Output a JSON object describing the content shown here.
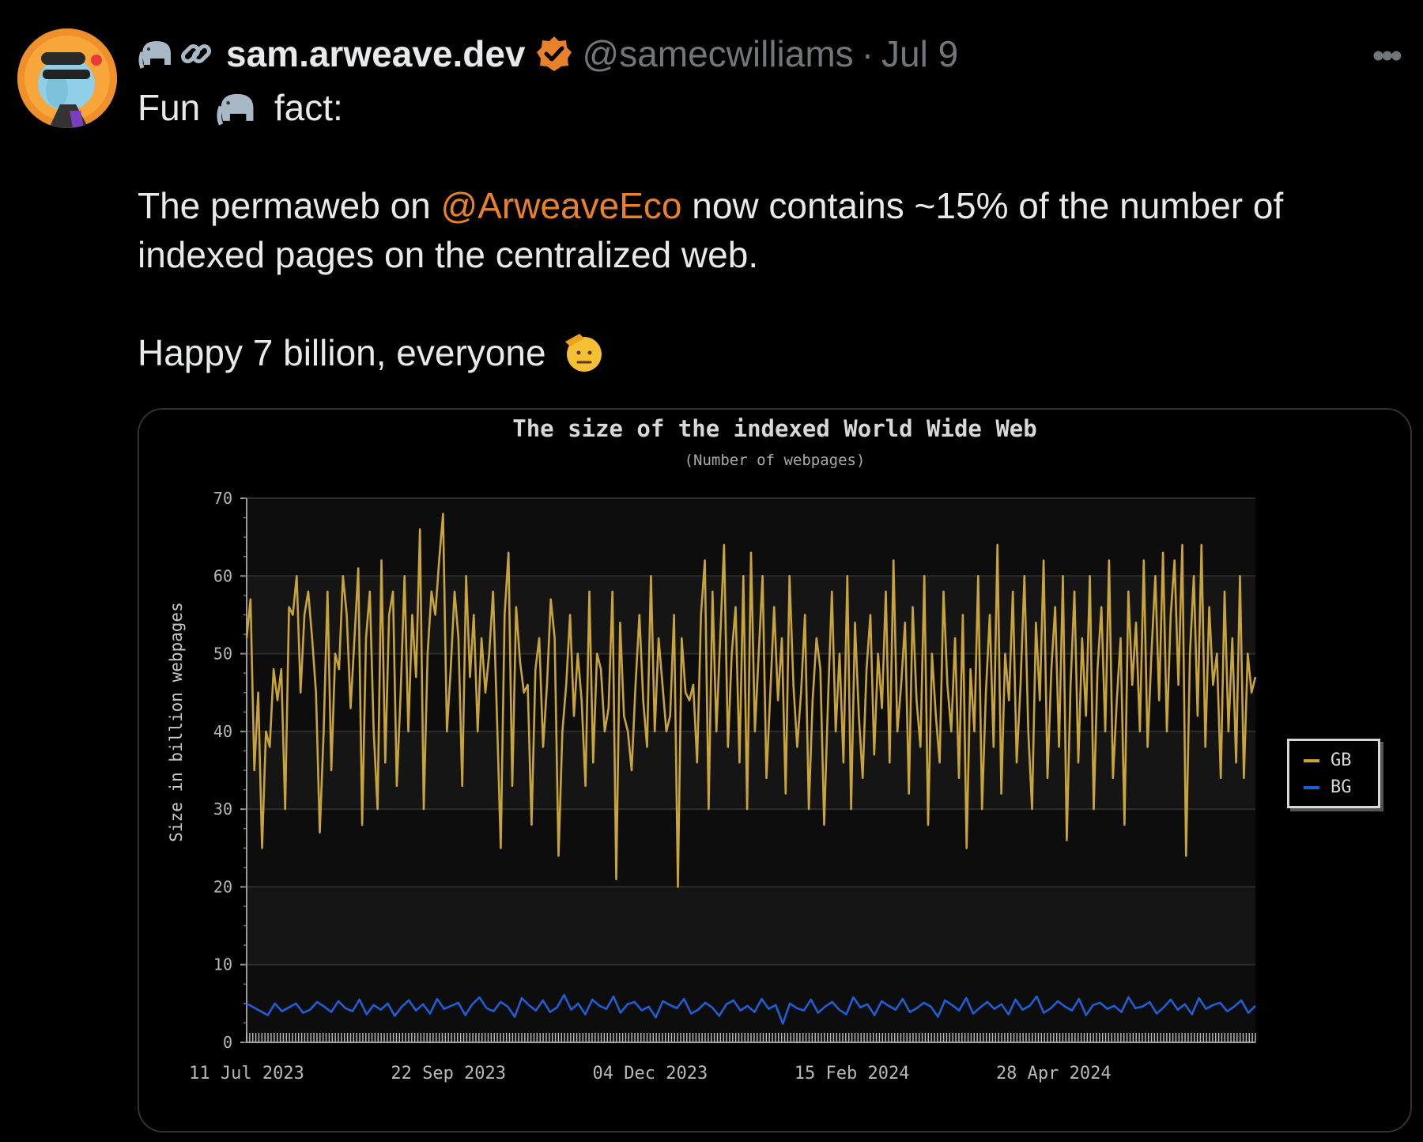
{
  "tweet": {
    "author_emojis": [
      "elephant",
      "link"
    ],
    "display_name": "sam.arweave.dev",
    "handle": "@samecwilliams",
    "separator": "·",
    "date": "Jul 9",
    "more_label": "•••",
    "line1_a": "Fun",
    "line1_b": "fact:",
    "line2_a": "The permaweb on",
    "mention": "@ArweaveEco",
    "line2_b": "now contains ~15% of the number of indexed pages on the centralized web.",
    "line3": "Happy 7 billion, everyone"
  },
  "colors": {
    "background": "#000000",
    "text": "#e7e9ea",
    "muted": "#71767b",
    "mention": "#e8812a",
    "verified_badge": "#e8812a",
    "gb_series": "#c9a43a",
    "bg_series": "#1e5fd6"
  },
  "chart_data": {
    "type": "line",
    "title": "The size of the indexed World Wide Web",
    "subtitle": "(Number of webpages)",
    "ylabel": "Size in billion webpages",
    "ylim": [
      0,
      70
    ],
    "yticks": [
      0,
      10,
      20,
      30,
      40,
      50,
      60,
      70
    ],
    "xtick_labels": [
      "11 Jul 2023",
      "22 Sep 2023",
      "04 Dec 2023",
      "15 Feb 2024",
      "28 Apr 2024"
    ],
    "legend_position": "right",
    "series": [
      {
        "name": "GB",
        "color": "#c9a43a",
        "values": [
          52,
          57,
          35,
          45,
          25,
          40,
          38,
          48,
          44,
          48,
          30,
          56,
          55,
          60,
          45,
          55,
          58,
          52,
          45,
          27,
          40,
          58,
          35,
          50,
          48,
          60,
          55,
          43,
          52,
          61,
          28,
          52,
          58,
          40,
          30,
          62,
          36,
          55,
          58,
          33,
          45,
          60,
          40,
          55,
          47,
          66,
          30,
          50,
          58,
          55,
          62,
          68,
          40,
          48,
          58,
          52,
          33,
          60,
          47,
          55,
          40,
          52,
          45,
          50,
          58,
          42,
          25,
          55,
          63,
          33,
          56,
          49,
          45,
          46,
          28,
          48,
          52,
          38,
          46,
          57,
          52,
          24,
          40,
          46,
          55,
          42,
          50,
          44,
          33,
          58,
          36,
          50,
          48,
          40,
          43,
          58,
          21,
          54,
          42,
          40,
          35,
          46,
          55,
          44,
          38,
          60,
          40,
          52,
          46,
          40,
          42,
          55,
          20,
          52,
          45,
          44,
          46,
          36,
          55,
          62,
          30,
          58,
          40,
          52,
          64,
          38,
          50,
          56,
          36,
          60,
          30,
          63,
          40,
          50,
          60,
          34,
          45,
          56,
          44,
          52,
          32,
          60,
          46,
          38,
          45,
          55,
          30,
          44,
          52,
          48,
          28,
          44,
          58,
          40,
          50,
          36,
          60,
          30,
          54,
          42,
          34,
          48,
          55,
          37,
          50,
          43,
          58,
          36,
          62,
          40,
          46,
          54,
          32,
          56,
          44,
          38,
          60,
          28,
          50,
          42,
          36,
          58,
          46,
          40,
          52,
          34,
          55,
          25,
          48,
          40,
          60,
          30,
          45,
          55,
          38,
          64,
          32,
          50,
          44,
          58,
          36,
          46,
          60,
          40,
          30,
          54,
          44,
          62,
          34,
          48,
          56,
          38,
          60,
          26,
          46,
          58,
          36,
          52,
          42,
          60,
          30,
          48,
          56,
          40,
          62,
          34,
          44,
          52,
          28,
          58,
          46,
          54,
          40,
          62,
          38,
          50,
          60,
          44,
          63,
          40,
          55,
          62,
          46,
          64,
          24,
          50,
          60,
          42,
          64,
          38,
          56,
          46,
          50,
          34,
          58,
          40,
          52,
          36,
          60,
          34,
          50,
          45,
          47
        ]
      },
      {
        "name": "BG",
        "color": "#1e5fd6",
        "values": [
          5,
          4.5,
          4,
          3.5,
          5,
          4,
          4.5,
          5,
          3.8,
          4.2,
          5.2,
          4.6,
          3.9,
          5.3,
          4.4,
          4,
          5.5,
          3.6,
          4.8,
          4.2,
          5,
          3.4,
          4.6,
          5.4,
          4.1,
          4.9,
          3.7,
          5.6,
          4.3,
          4.7,
          5.1,
          3.5,
          4.9,
          5.8,
          4.4,
          4,
          5.2,
          4.6,
          3.3,
          5.7,
          4.8,
          4.1,
          5.4,
          3.9,
          4.5,
          6.1,
          4.2,
          5,
          3.6,
          5.5,
          4.7,
          4.3,
          5.9,
          3.8,
          4.9,
          5.2,
          4.1,
          4.6,
          3.2,
          5.3,
          4.8,
          4.4,
          5.6,
          3.7,
          4.2,
          5.1,
          4.5,
          3.4,
          4.9,
          5.4,
          4.1,
          4.7,
          3.9,
          5.6,
          4.3,
          4.8,
          2.4,
          5,
          4.4,
          4.1,
          5.5,
          3.8,
          4.6,
          5.2,
          4.2,
          3.6,
          5.8,
          4.5,
          4.9,
          3.5,
          5.3,
          4.7,
          4.2,
          5.6,
          3.9,
          4.4,
          5.1,
          4.6,
          3.3,
          5.4,
          4.8,
          4.1,
          5.7,
          3.7,
          4.5,
          5.2,
          4.3,
          4.9,
          3.6,
          5.5,
          4.2,
          4.7,
          5.9,
          3.8,
          4.4,
          5.3,
          4.6,
          4.1,
          5.6,
          3.5,
          4.8,
          5.1,
          4.3,
          4.7,
          3.9,
          5.8,
          4.4,
          4.6,
          5.2,
          3.7,
          4.5,
          5.5,
          4.2,
          4.9,
          3.6,
          5.7,
          4.3,
          4.8,
          5.1,
          4,
          4.6,
          5.4,
          3.8,
          4.7
        ]
      }
    ]
  }
}
